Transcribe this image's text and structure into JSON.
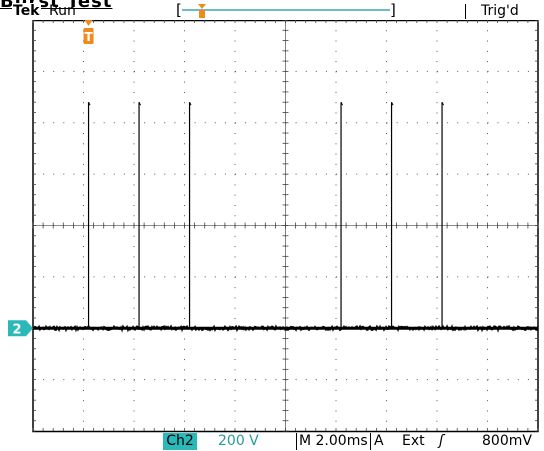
{
  "title": "Burst Test",
  "header": {
    "brand": "Tek",
    "run_state": "Run",
    "trigger_state": "Trig'd"
  },
  "record_bar": {
    "left_bracket": "[",
    "right_bracket": "]"
  },
  "markers": {
    "trigger_position": "T",
    "channel_marker": "2"
  },
  "status_bar": {
    "channel": "Ch2",
    "channel_scale": "200 V",
    "timebase": "M 2.00ms",
    "trigger_source_label": "A",
    "trigger_source": "Ext",
    "trigger_slope": "ʃ",
    "trigger_level": "800mV"
  },
  "colors": {
    "channel2": "#2bb8b8",
    "trigger_marker": "#f08a1c",
    "record_bar": "#3aa6b5",
    "trace": "#000000"
  },
  "scope": {
    "horizontal_divisions": 10,
    "vertical_divisions": 8,
    "time_per_division_ms": 2.0,
    "trigger_position_division": 1.1,
    "spike_positions_division": [
      1.1,
      2.1,
      3.1,
      6.1,
      7.1,
      8.1
    ],
    "spike_height_divisions": 4.4,
    "baseline_division_from_bottom": 2.0
  }
}
